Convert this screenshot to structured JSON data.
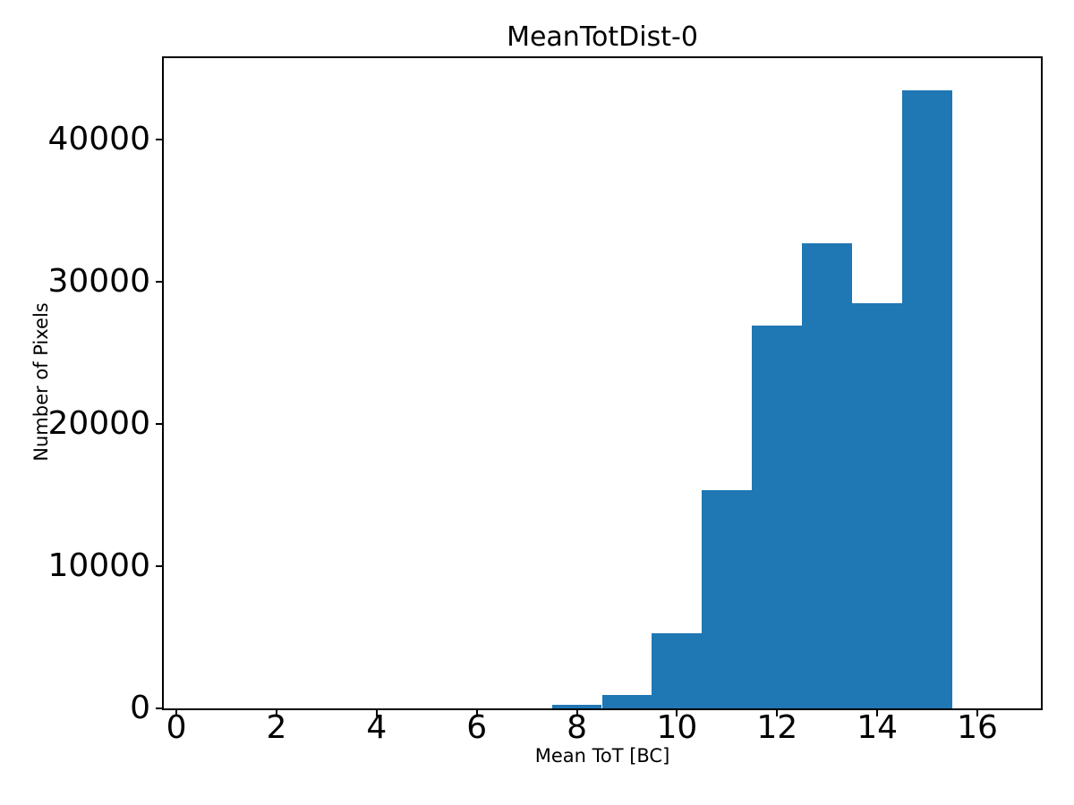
{
  "figure": {
    "title": "MeanTotDist-0",
    "xlabel": "Mean ToT [BC]",
    "ylabel": "Number of Pixels"
  },
  "chart_data": {
    "type": "bar",
    "subtype": "histogram",
    "title": "MeanTotDist-0",
    "xlabel": "Mean ToT [BC]",
    "ylabel": "Number of Pixels",
    "bin_edges": [
      7.5,
      8.5,
      9.5,
      10.5,
      11.5,
      12.5,
      13.5,
      14.5,
      15.5
    ],
    "values": [
      250,
      950,
      5280,
      15320,
      26950,
      32720,
      28510,
      43450
    ],
    "bar_color": "#1f77b4",
    "xticks": [
      0,
      2,
      4,
      6,
      8,
      10,
      12,
      14,
      16
    ],
    "yticks": [
      0,
      10000,
      20000,
      30000,
      40000
    ],
    "xlim": [
      -0.27,
      17.27
    ],
    "ylim": [
      0,
      45800
    ],
    "grid": false,
    "legend": null,
    "background_color": "#ffffff",
    "text_color": "#000000"
  }
}
